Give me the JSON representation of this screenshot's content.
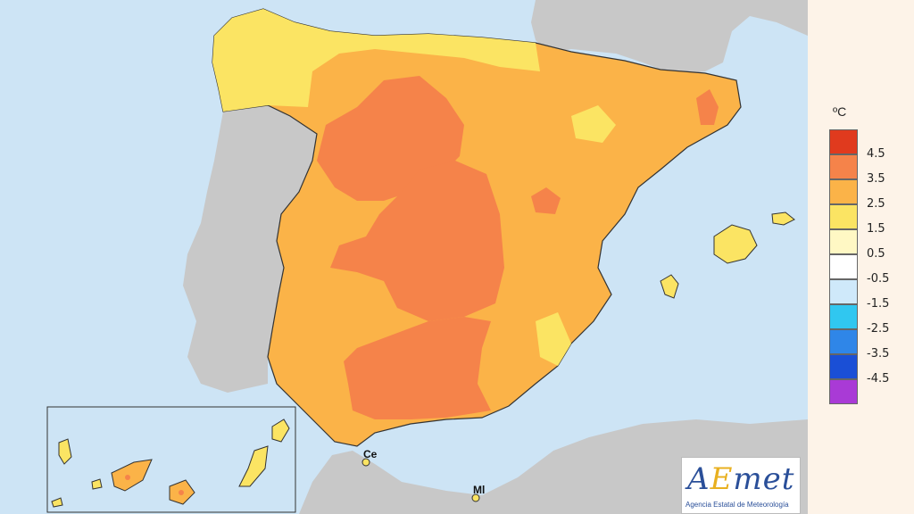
{
  "map": {
    "sea_color": "#cde4f5",
    "land_other_color": "#c8c8c8",
    "labels": {
      "ceuta": "Ce",
      "melilla": "Ml"
    }
  },
  "legend": {
    "unit": "ºC",
    "items": [
      {
        "label": "4.5",
        "color": "#e03a1e"
      },
      {
        "label": "3.5",
        "color": "#f5834a"
      },
      {
        "label": "2.5",
        "color": "#fbb348"
      },
      {
        "label": "1.5",
        "color": "#fbe463"
      },
      {
        "label": "0.5",
        "color": "#fff8c4"
      },
      {
        "label": "-0.5",
        "color": "#ffffff"
      },
      {
        "label": "-1.5",
        "color": "#cfe9fa"
      },
      {
        "label": "-2.5",
        "color": "#30c7f0"
      },
      {
        "label": "-3.5",
        "color": "#2f86e8"
      },
      {
        "label": "-4.5",
        "color": "#1a4fd6"
      },
      {
        "label": "",
        "color": "#a93ad6"
      }
    ]
  },
  "logo": {
    "text_a": "A",
    "text_e": "E",
    "text_met": "met",
    "subtitle": "Agencia Estatal de Meteorología"
  }
}
